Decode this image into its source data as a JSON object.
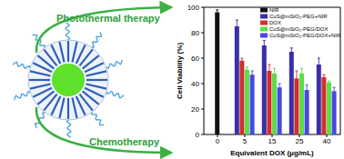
{
  "chart_data": {
    "type": "bar",
    "x_label": "Equivalent DOX (μg/mL)",
    "y_label": "Cell Viability (%)",
    "categories": [
      "0",
      "5",
      "15",
      "25",
      "40"
    ],
    "series": [
      {
        "name": "NIR",
        "color": "#111111",
        "values": [
          96,
          null,
          null,
          null,
          null
        ],
        "errors": [
          2,
          null,
          null,
          null,
          null
        ]
      },
      {
        "name": "CuS@mSiO₂-PEG+NIR",
        "color": "#3a2fa8",
        "values": [
          null,
          85,
          70,
          65,
          55
        ],
        "errors": [
          null,
          5,
          4,
          3,
          5
        ]
      },
      {
        "name": "DOX",
        "color": "#d0302a",
        "values": [
          null,
          58,
          50,
          44,
          45
        ],
        "errors": [
          null,
          2,
          5,
          6,
          2
        ]
      },
      {
        "name": "CuS@mSiO₂-PEG/DOX",
        "color": "#5fdc4a",
        "values": [
          null,
          51,
          48,
          48,
          41
        ],
        "errors": [
          null,
          2,
          4,
          4,
          1
        ]
      },
      {
        "name": "CuS@mSiO₂-PEG/DOX+NIR",
        "color": "#4848e6",
        "values": [
          null,
          47,
          37,
          35,
          34
        ],
        "errors": [
          null,
          3,
          3,
          4,
          3
        ]
      }
    ],
    "ylim": [
      0,
      100
    ],
    "yticks": [
      0,
      20,
      40,
      60,
      80,
      100
    ],
    "legend": "upper right",
    "grid": false
  },
  "diagram": {
    "labels": [
      "Photothermal therapy",
      "Chemotherapy"
    ]
  }
}
